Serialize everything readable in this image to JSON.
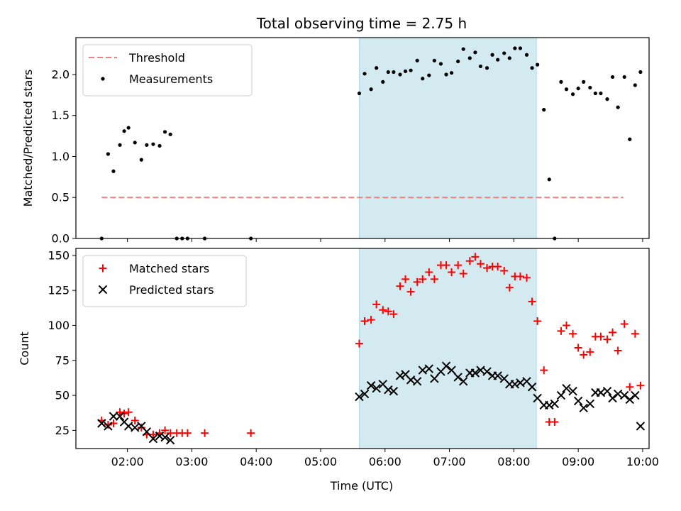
{
  "chart_data": {
    "type": "scatter",
    "title": "Total observing time = 2.75 h",
    "xlabel": "Time (UTC)",
    "xlim": [
      "01:12",
      "10:06"
    ],
    "x_ticks": [
      "02:00",
      "03:00",
      "04:00",
      "05:00",
      "06:00",
      "07:00",
      "08:00",
      "09:00",
      "10:00"
    ],
    "shaded_interval": [
      "05:36",
      "08:21"
    ],
    "shaded_color": "#d3eaf1",
    "panels": [
      {
        "ylabel": "Matched/Predicted stars",
        "ylim": [
          0,
          2.45
        ],
        "y_ticks": [
          "0.0",
          "0.5",
          "1.0",
          "1.5",
          "2.0"
        ],
        "legend_position": "top-left",
        "threshold": {
          "name": "Threshold",
          "value": 0.5,
          "x_range": [
            "01:36",
            "09:42"
          ],
          "color": "#f08080"
        },
        "series": [
          {
            "name": "Measurements",
            "marker": "dot",
            "color": "#000000",
            "points": [
              [
                "01:36",
                0.0
              ],
              [
                "01:42",
                1.03
              ],
              [
                "01:47",
                0.82
              ],
              [
                "01:53",
                1.14
              ],
              [
                "01:57",
                1.31
              ],
              [
                "02:01",
                1.35
              ],
              [
                "02:07",
                1.17
              ],
              [
                "02:13",
                0.96
              ],
              [
                "02:18",
                1.14
              ],
              [
                "02:24",
                1.15
              ],
              [
                "02:30",
                1.13
              ],
              [
                "02:35",
                1.3
              ],
              [
                "02:40",
                1.27
              ],
              [
                "02:46",
                0.0
              ],
              [
                "02:51",
                0.0
              ],
              [
                "02:56",
                0.0
              ],
              [
                "03:12",
                0.0
              ],
              [
                "03:55",
                0.0
              ],
              [
                "05:36",
                1.77
              ],
              [
                "05:41",
                2.01
              ],
              [
                "05:47",
                1.82
              ],
              [
                "05:52",
                2.08
              ],
              [
                "05:58",
                1.91
              ],
              [
                "06:03",
                2.03
              ],
              [
                "06:08",
                2.03
              ],
              [
                "06:14",
                2.0
              ],
              [
                "06:19",
                2.04
              ],
              [
                "06:24",
                2.05
              ],
              [
                "06:30",
                2.17
              ],
              [
                "06:35",
                1.95
              ],
              [
                "06:41",
                1.99
              ],
              [
                "06:46",
                2.17
              ],
              [
                "06:52",
                2.13
              ],
              [
                "06:57",
                2.0
              ],
              [
                "07:02",
                2.02
              ],
              [
                "07:08",
                2.16
              ],
              [
                "07:13",
                2.31
              ],
              [
                "07:19",
                2.2
              ],
              [
                "07:24",
                2.27
              ],
              [
                "07:29",
                2.1
              ],
              [
                "07:35",
                2.08
              ],
              [
                "07:40",
                2.24
              ],
              [
                "07:45",
                2.18
              ],
              [
                "07:51",
                2.26
              ],
              [
                "07:56",
                2.2
              ],
              [
                "08:01",
                2.32
              ],
              [
                "08:06",
                2.32
              ],
              [
                "08:12",
                2.24
              ],
              [
                "08:17",
                2.08
              ],
              [
                "08:22",
                2.12
              ],
              [
                "08:28",
                1.57
              ],
              [
                "08:33",
                0.72
              ],
              [
                "08:38",
                0.0
              ],
              [
                "08:44",
                1.91
              ],
              [
                "08:49",
                1.82
              ],
              [
                "08:55",
                1.76
              ],
              [
                "09:00",
                1.83
              ],
              [
                "09:05",
                1.91
              ],
              [
                "09:11",
                1.84
              ],
              [
                "09:16",
                1.77
              ],
              [
                "09:21",
                1.77
              ],
              [
                "09:27",
                1.7
              ],
              [
                "09:32",
                1.97
              ],
              [
                "09:37",
                1.6
              ],
              [
                "09:43",
                1.97
              ],
              [
                "09:48",
                1.21
              ],
              [
                "09:53",
                1.87
              ],
              [
                "09:58",
                2.03
              ]
            ]
          }
        ]
      },
      {
        "ylabel": "Count",
        "ylim": [
          12,
          155
        ],
        "y_ticks": [
          "25",
          "50",
          "75",
          "100",
          "125",
          "150"
        ],
        "legend_position": "top-left",
        "series": [
          {
            "name": "Matched stars",
            "marker": "plus",
            "color": "#ff0000",
            "points": [
              [
                "01:36",
                32
              ],
              [
                "01:42",
                29
              ],
              [
                "01:47",
                30
              ],
              [
                "01:53",
                38
              ],
              [
                "01:57",
                37
              ],
              [
                "02:01",
                38
              ],
              [
                "02:07",
                32
              ],
              [
                "02:13",
                27
              ],
              [
                "02:18",
                22
              ],
              [
                "02:24",
                22
              ],
              [
                "02:30",
                23
              ],
              [
                "02:35",
                25
              ],
              [
                "02:40",
                23
              ],
              [
                "02:46",
                23
              ],
              [
                "02:51",
                23
              ],
              [
                "02:56",
                23
              ],
              [
                "03:12",
                23
              ],
              [
                "03:55",
                23
              ],
              [
                "05:36",
                87
              ],
              [
                "05:41",
                103
              ],
              [
                "05:47",
                104
              ],
              [
                "05:52",
                115
              ],
              [
                "05:58",
                111
              ],
              [
                "06:03",
                110
              ],
              [
                "06:08",
                108
              ],
              [
                "06:14",
                128
              ],
              [
                "06:19",
                133
              ],
              [
                "06:24",
                124
              ],
              [
                "06:30",
                131
              ],
              [
                "06:35",
                133
              ],
              [
                "06:41",
                138
              ],
              [
                "06:46",
                133
              ],
              [
                "06:52",
                143
              ],
              [
                "06:57",
                143
              ],
              [
                "07:02",
                138
              ],
              [
                "07:08",
                143
              ],
              [
                "07:13",
                137
              ],
              [
                "07:19",
                146
              ],
              [
                "07:24",
                149
              ],
              [
                "07:29",
                144
              ],
              [
                "07:35",
                141
              ],
              [
                "07:40",
                142
              ],
              [
                "07:45",
                142
              ],
              [
                "07:51",
                139
              ],
              [
                "07:56",
                127
              ],
              [
                "08:01",
                135
              ],
              [
                "08:06",
                135
              ],
              [
                "08:12",
                134
              ],
              [
                "08:17",
                117
              ],
              [
                "08:22",
                103
              ],
              [
                "08:28",
                68
              ],
              [
                "08:33",
                31
              ],
              [
                "08:38",
                31
              ],
              [
                "08:44",
                96
              ],
              [
                "08:49",
                100
              ],
              [
                "08:55",
                94
              ],
              [
                "09:00",
                84
              ],
              [
                "09:05",
                79
              ],
              [
                "09:11",
                81
              ],
              [
                "09:16",
                92
              ],
              [
                "09:21",
                92
              ],
              [
                "09:27",
                90
              ],
              [
                "09:32",
                95
              ],
              [
                "09:37",
                82
              ],
              [
                "09:43",
                101
              ],
              [
                "09:48",
                56
              ],
              [
                "09:53",
                94
              ],
              [
                "09:58",
                57
              ]
            ]
          },
          {
            "name": "Predicted stars",
            "marker": "cross",
            "color": "#000000",
            "points": [
              [
                "01:36",
                30
              ],
              [
                "01:42",
                28
              ],
              [
                "01:47",
                35
              ],
              [
                "01:53",
                35
              ],
              [
                "01:57",
                31
              ],
              [
                "02:01",
                28
              ],
              [
                "02:07",
                27
              ],
              [
                "02:13",
                28
              ],
              [
                "02:18",
                24
              ],
              [
                "02:24",
                19
              ],
              [
                "02:30",
                21
              ],
              [
                "02:35",
                20
              ],
              [
                "02:40",
                18
              ],
              [
                "05:36",
                49
              ],
              [
                "05:41",
                51
              ],
              [
                "05:47",
                57
              ],
              [
                "05:52",
                55
              ],
              [
                "05:58",
                58
              ],
              [
                "06:03",
                54
              ],
              [
                "06:08",
                53
              ],
              [
                "06:14",
                64
              ],
              [
                "06:19",
                65
              ],
              [
                "06:24",
                61
              ],
              [
                "06:30",
                60
              ],
              [
                "06:35",
                68
              ],
              [
                "06:41",
                69
              ],
              [
                "06:46",
                62
              ],
              [
                "06:52",
                67
              ],
              [
                "06:57",
                71
              ],
              [
                "07:02",
                68
              ],
              [
                "07:08",
                63
              ],
              [
                "07:13",
                60
              ],
              [
                "07:19",
                66
              ],
              [
                "07:24",
                66
              ],
              [
                "07:29",
                68
              ],
              [
                "07:35",
                67
              ],
              [
                "07:40",
                64
              ],
              [
                "07:45",
                64
              ],
              [
                "07:51",
                62
              ],
              [
                "07:56",
                58
              ],
              [
                "08:01",
                58
              ],
              [
                "08:06",
                59
              ],
              [
                "08:12",
                60
              ],
              [
                "08:17",
                56
              ],
              [
                "08:22",
                48
              ],
              [
                "08:28",
                43
              ],
              [
                "08:33",
                43
              ],
              [
                "08:38",
                44
              ],
              [
                "08:44",
                50
              ],
              [
                "08:49",
                55
              ],
              [
                "08:55",
                53
              ],
              [
                "09:00",
                46
              ],
              [
                "09:05",
                41
              ],
              [
                "09:11",
                44
              ],
              [
                "09:16",
                52
              ],
              [
                "09:21",
                52
              ],
              [
                "09:27",
                53
              ],
              [
                "09:32",
                48
              ],
              [
                "09:37",
                51
              ],
              [
                "09:43",
                50
              ],
              [
                "09:48",
                47
              ],
              [
                "09:53",
                50
              ],
              [
                "09:58",
                28
              ]
            ]
          }
        ]
      }
    ]
  }
}
